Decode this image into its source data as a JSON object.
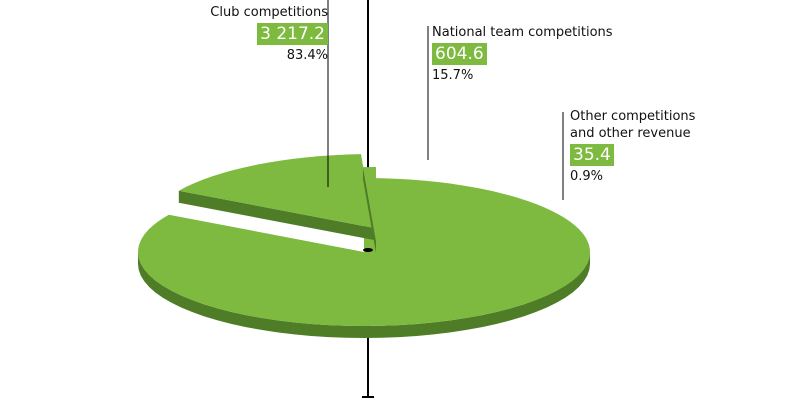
{
  "chart_data": {
    "type": "pie",
    "categories": [
      "Club competitions",
      "National team competitions",
      "Other competitions and other revenue"
    ],
    "values": [
      3217.2,
      604.6,
      35.4
    ],
    "value_labels": [
      "3 217.2",
      "604.6",
      "35.4"
    ],
    "share_labels": [
      "83.4%",
      "15.7%",
      "0.9%"
    ],
    "color": "#7dba3f",
    "side_color": "#4f7d27"
  }
}
